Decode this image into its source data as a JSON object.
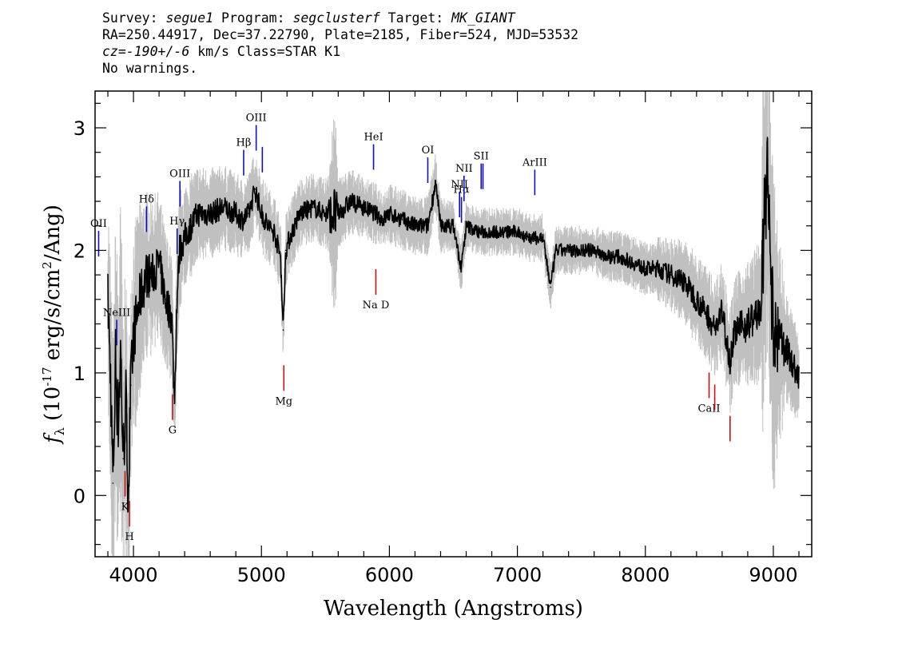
{
  "header": {
    "line1": {
      "survey_label": "Survey: ",
      "survey": "segue1",
      "program_label": " Program: ",
      "program": "segclusterf",
      "target_label": " Target: ",
      "target": "MK_GIANT"
    },
    "line2": "RA=250.44917, Dec=37.22790, Plate=2185, Fiber=524, MJD=53532",
    "line3": {
      "cz": "cz=-190+/-6",
      "rest": " km/s Class=STAR K1"
    },
    "line4": "No warnings."
  },
  "colors": {
    "flux": "#000000",
    "error": "#c0c0c0",
    "emission": "#1010c0",
    "absorption": "#d01010"
  },
  "chart_data": {
    "type": "line",
    "xlabel": "Wavelength (Angstroms)",
    "ylabel_parts": {
      "f": "f",
      "sub": "λ",
      "open": " (10",
      "exp": "-17",
      "unit": " erg/s/cm",
      "sq": "2",
      "close": "/Ang)"
    },
    "xlim": [
      3700,
      9300
    ],
    "ylim": [
      -0.5,
      3.3
    ],
    "x_ticks": [
      4000,
      5000,
      6000,
      7000,
      8000,
      9000
    ],
    "y_ticks": [
      0,
      1,
      2,
      3
    ],
    "grid": false,
    "series": [
      {
        "role": "flux",
        "x": [
          3800,
          3820,
          3840,
          3860,
          3880,
          3900,
          3920,
          3940,
          3960,
          3980,
          4000,
          4050,
          4100,
          4150,
          4200,
          4250,
          4300,
          4320,
          4340,
          4360,
          4400,
          4450,
          4500,
          4600,
          4700,
          4800,
          4850,
          4900,
          4950,
          5000,
          5050,
          5100,
          5150,
          5170,
          5190,
          5220,
          5300,
          5400,
          5500,
          5600,
          5700,
          5800,
          5890,
          5950,
          6000,
          6100,
          6200,
          6300,
          6360,
          6400,
          6500,
          6560,
          6600,
          6700,
          6800,
          6900,
          7000,
          7100,
          7200,
          7260,
          7300,
          7400,
          7500,
          7600,
          7700,
          7800,
          7900,
          8000,
          8100,
          8200,
          8300,
          8400,
          8500,
          8540,
          8600,
          8662,
          8700,
          8800,
          8900,
          8950,
          9000,
          9100,
          9200
        ],
        "y": [
          1.6,
          1.0,
          0.1,
          1.1,
          0.6,
          1.2,
          0.3,
          0.8,
          0.0,
          0.9,
          1.3,
          1.6,
          1.8,
          1.8,
          1.9,
          1.6,
          1.45,
          0.75,
          1.6,
          2.0,
          2.1,
          2.2,
          2.3,
          2.3,
          2.35,
          2.3,
          2.25,
          2.3,
          2.5,
          2.3,
          2.2,
          2.15,
          1.95,
          1.35,
          2.0,
          2.1,
          2.3,
          2.35,
          2.3,
          2.3,
          2.4,
          2.35,
          2.3,
          2.25,
          2.3,
          2.25,
          2.2,
          2.2,
          2.55,
          2.2,
          2.2,
          1.85,
          2.2,
          2.15,
          2.15,
          2.15,
          2.15,
          2.1,
          2.1,
          1.7,
          2.0,
          2.0,
          2.0,
          2.0,
          1.95,
          1.95,
          1.9,
          1.85,
          1.85,
          1.8,
          1.75,
          1.6,
          1.45,
          1.35,
          1.5,
          1.1,
          1.35,
          1.4,
          1.5,
          2.65,
          1.3,
          1.2,
          0.95
        ]
      },
      {
        "role": "error",
        "x": [
          3800,
          3850,
          3900,
          3950,
          4000,
          4100,
          4200,
          4300,
          4400,
          4500,
          4700,
          5000,
          5200,
          5500,
          5580,
          5600,
          5800,
          6000,
          6300,
          6600,
          7000,
          7400,
          8000,
          8300,
          8500,
          8700,
          8900,
          8920,
          8980,
          9100,
          9200
        ],
        "half_width": [
          0.9,
          1.2,
          1.3,
          1.1,
          0.9,
          0.7,
          0.6,
          0.55,
          0.45,
          0.4,
          0.35,
          0.32,
          0.3,
          0.28,
          0.9,
          0.3,
          0.25,
          0.25,
          0.25,
          0.2,
          0.2,
          0.2,
          0.22,
          0.35,
          0.4,
          0.45,
          0.6,
          1.5,
          1.5,
          0.45,
          0.4
        ]
      }
    ],
    "emission_lines": [
      {
        "label": "OII",
        "wave": 3728
      },
      {
        "label": "NeIII",
        "wave": 3869
      },
      {
        "label": "Hδ",
        "wave": 4102
      },
      {
        "label": "Hγ",
        "wave": 4341
      },
      {
        "label": "OIII",
        "wave": 4363
      },
      {
        "label": "Hβ",
        "wave": 4861
      },
      {
        "label": "OIII",
        "wave": 4959
      },
      {
        "label": "",
        "wave": 5007
      },
      {
        "label": "HeI",
        "wave": 5876
      },
      {
        "label": "OI",
        "wave": 6300
      },
      {
        "label": "NII",
        "wave": 6548
      },
      {
        "label": "Hα",
        "wave": 6563
      },
      {
        "label": "NII",
        "wave": 6583
      },
      {
        "label": "SII",
        "wave": 6717
      },
      {
        "label": "",
        "wave": 6731
      },
      {
        "label": "ArIII",
        "wave": 7136
      }
    ],
    "absorption_lines": [
      {
        "label": "K",
        "wave": 3934
      },
      {
        "label": "H",
        "wave": 3969
      },
      {
        "label": "G",
        "wave": 4305
      },
      {
        "label": "Mg",
        "wave": 5175
      },
      {
        "label": "Na  D",
        "wave": 5894
      },
      {
        "label": "CaII",
        "wave": 8498
      },
      {
        "label": "",
        "wave": 8542
      },
      {
        "label": "",
        "wave": 8662
      }
    ]
  }
}
